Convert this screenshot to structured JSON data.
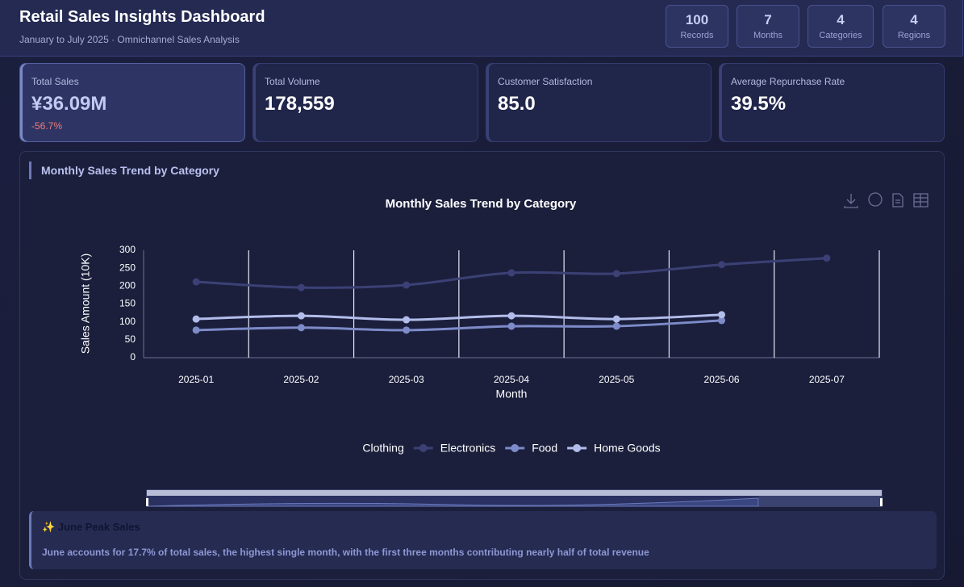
{
  "header": {
    "title": "Retail Sales Insights Dashboard",
    "subtitle": "January to July 2025 · Omnichannel Sales Analysis",
    "stats": [
      {
        "value": "100",
        "label": "Records"
      },
      {
        "value": "7",
        "label": "Months"
      },
      {
        "value": "4",
        "label": "Categories"
      },
      {
        "value": "4",
        "label": "Regions"
      }
    ]
  },
  "kpis": [
    {
      "label": "Total Sales",
      "value": "¥36.09M",
      "change": "-56.7%"
    },
    {
      "label": "Total Volume",
      "value": "178,559"
    },
    {
      "label": "Customer Satisfaction",
      "value": "85.0"
    },
    {
      "label": "Average Repurchase Rate",
      "value": "39.5%"
    }
  ],
  "panel": {
    "heading": "Monthly Sales Trend by Category"
  },
  "chart_data": {
    "type": "line",
    "title": "Monthly Sales Trend by Category",
    "x_label": "Month",
    "y_label": "Sales Amount (10K)",
    "categories": [
      "2025-01",
      "2025-02",
      "2025-03",
      "2025-04",
      "2025-05",
      "2025-06",
      "2025-07"
    ],
    "series": [
      {
        "name": "Clothing",
        "color": "#252a50",
        "values": [
          null,
          null,
          null,
          null,
          null,
          null,
          null
        ]
      },
      {
        "name": "Electronics",
        "color": "#3b4175",
        "values": [
          212,
          196,
          203,
          237,
          235,
          260,
          278
        ]
      },
      {
        "name": "Food",
        "color": "#7d8bc9",
        "values": [
          77,
          84,
          77,
          88,
          88,
          104,
          null
        ]
      },
      {
        "name": "Home Goods",
        "color": "#b3bdeb",
        "values": [
          108,
          117,
          106,
          117,
          108,
          120,
          null
        ]
      }
    ],
    "ylim": [
      0,
      300
    ],
    "yticks": [
      0,
      50,
      100,
      150,
      200,
      250,
      300
    ],
    "xgrid": true,
    "legend": "bottom"
  },
  "insight": {
    "title": "✨ June Peak Sales",
    "text": "June accounts for 17.7% of total sales, the highest single month, with the first three months contributing nearly half of total revenue"
  }
}
